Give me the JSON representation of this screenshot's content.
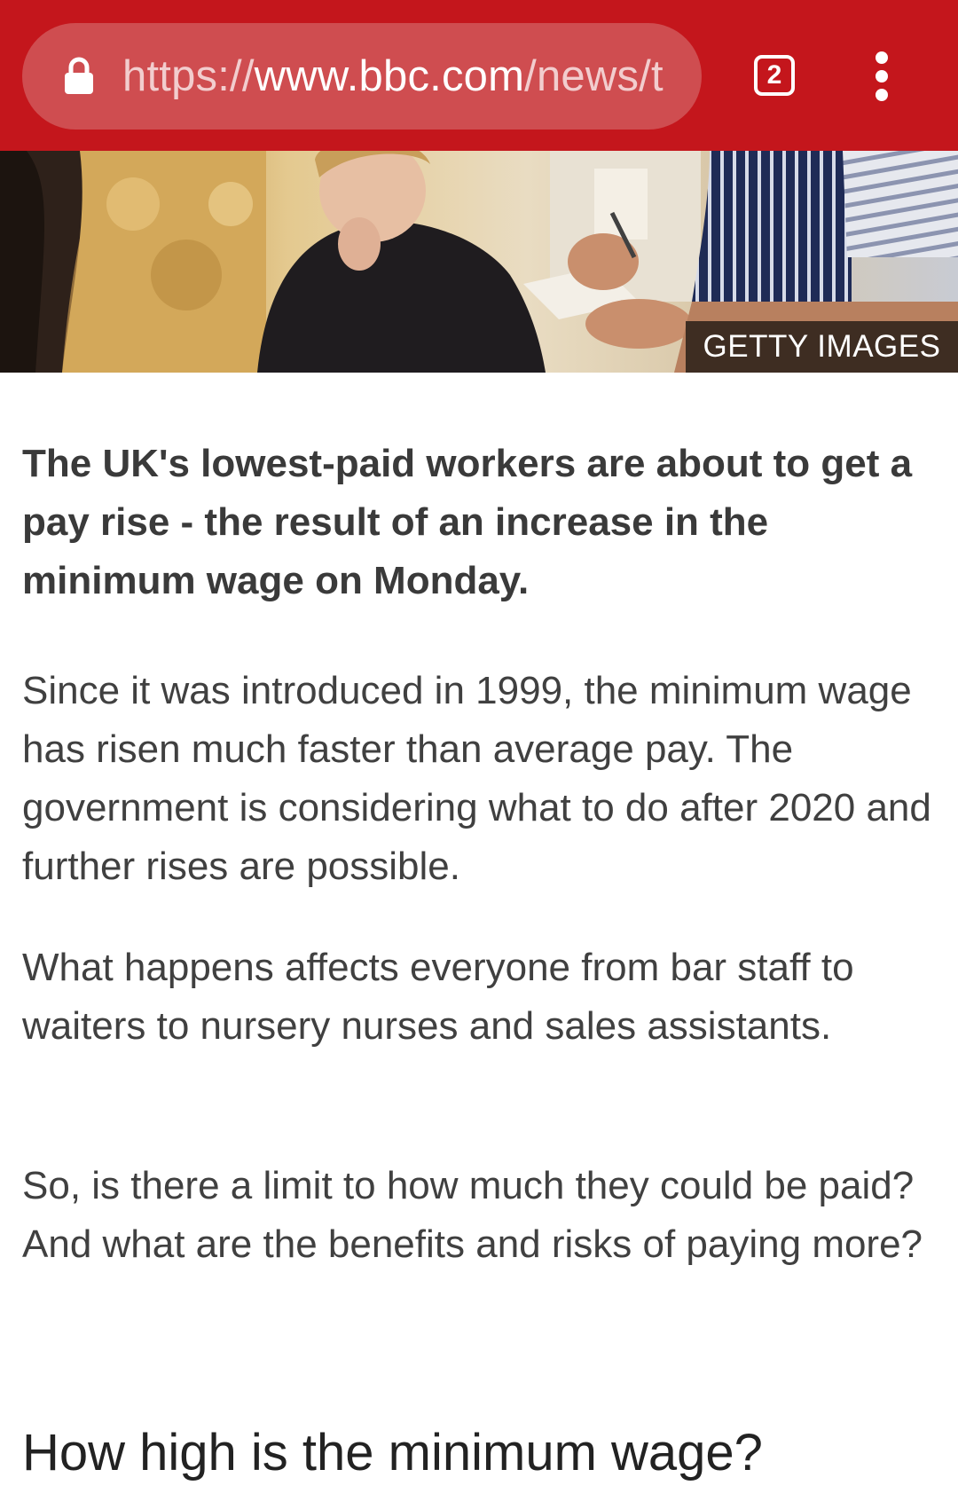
{
  "browser": {
    "url_scheme": "https://",
    "url_host": "www.bbc.com",
    "url_path": "/news/t",
    "tab_count": "2",
    "toolbar_color": "#c4161c",
    "icons": [
      "lock-icon",
      "tabs-icon",
      "overflow-menu-icon"
    ]
  },
  "hero": {
    "credit": "GETTY IMAGES"
  },
  "article": {
    "lead": "The UK's lowest-paid workers are about to get a pay rise - the result of an increase in the minimum wage on Monday.",
    "paragraphs": [
      "Since it was introduced in 1999, the minimum wage has risen much faster than average pay. The government is considering what to do after 2020 and further rises are possible.",
      "What happens affects everyone from bar staff to waiters to nursery nurses and sales assistants.",
      "So, is there a limit to how much they could be paid? And what are the benefits and risks of paying more?"
    ],
    "subheading": "How high is the minimum wage?"
  }
}
